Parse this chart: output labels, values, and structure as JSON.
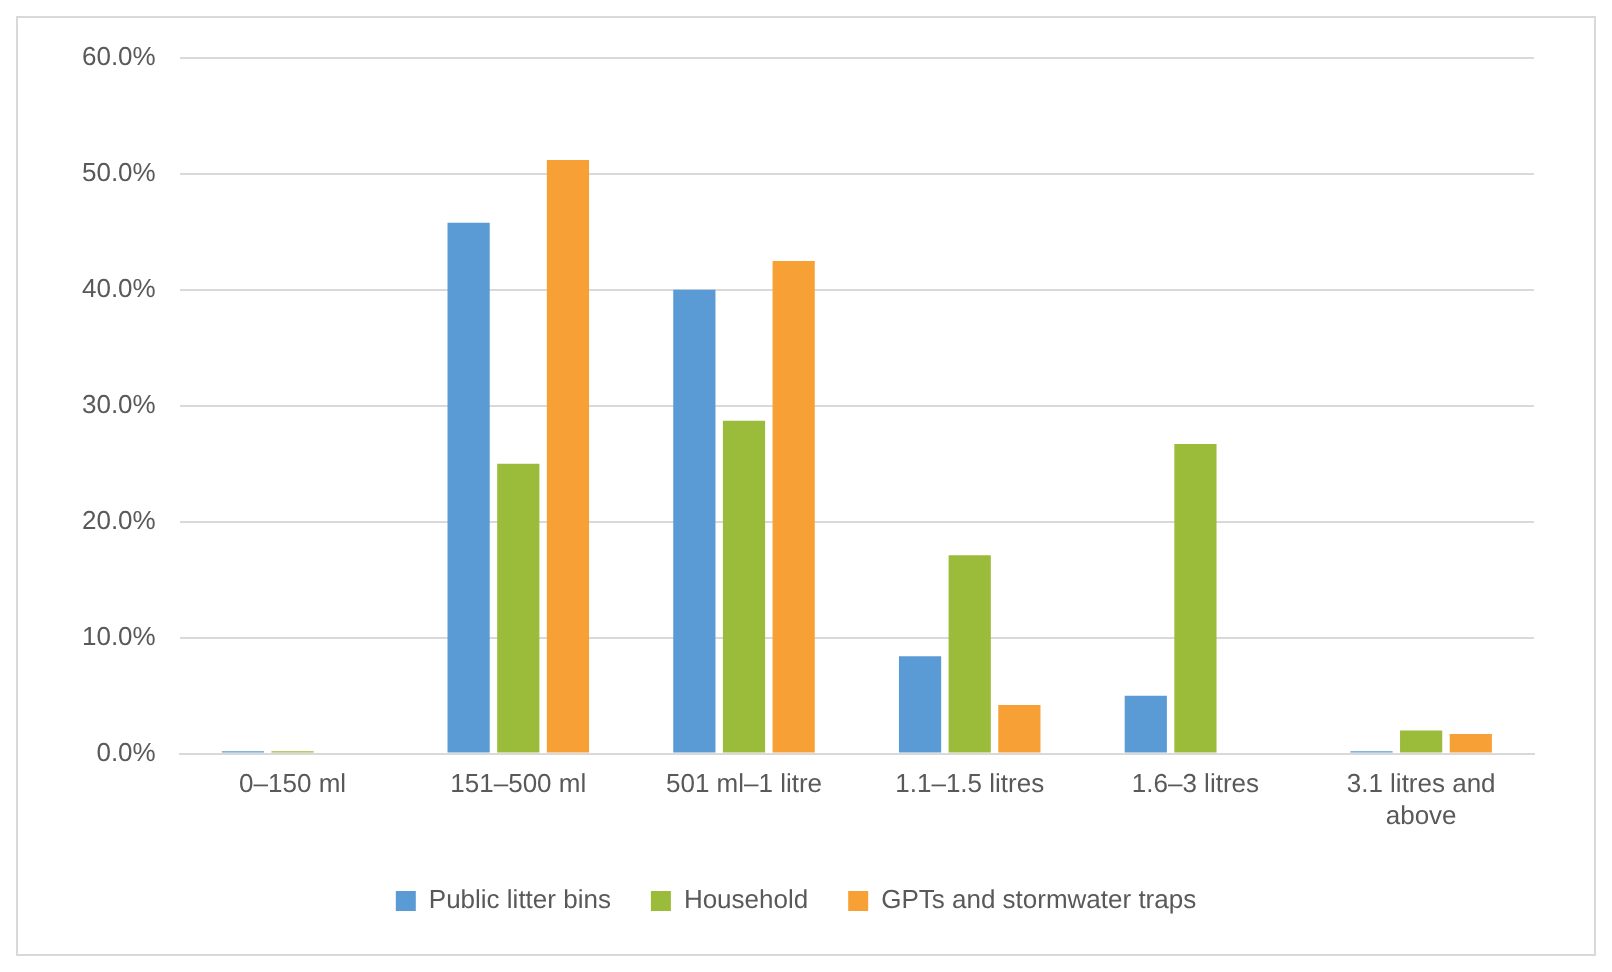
{
  "chart_data": {
    "type": "bar",
    "categories": [
      "0–150 ml",
      "151–500 ml",
      "501 ml–1 litre",
      "1.1–1.5 litres",
      "1.6–3 litres",
      "3.1 litres and above"
    ],
    "series": [
      {
        "name": "Public litter bins",
        "color": "#5b9bd5",
        "values": [
          0.2,
          45.8,
          40.0,
          8.4,
          5.0,
          0.2
        ]
      },
      {
        "name": "Household",
        "color": "#9bbb3b",
        "values": [
          0.2,
          25.0,
          28.7,
          17.1,
          26.7,
          2.0
        ]
      },
      {
        "name": "GPTs and stormwater traps",
        "color": "#f7a035",
        "values": [
          0,
          51.2,
          42.5,
          4.2,
          0,
          1.7
        ]
      }
    ],
    "ylim": [
      0,
      60
    ],
    "yticks": [
      {
        "value": 0,
        "label": "0.0%"
      },
      {
        "value": 10,
        "label": "10.0%"
      },
      {
        "value": 20,
        "label": "20.0%"
      },
      {
        "value": 30,
        "label": "30.0%"
      },
      {
        "value": 40,
        "label": "40.0%"
      },
      {
        "value": 50,
        "label": "50.0%"
      },
      {
        "value": 60,
        "label": "60.0%"
      }
    ],
    "grid": "y",
    "legend": "bottom"
  }
}
